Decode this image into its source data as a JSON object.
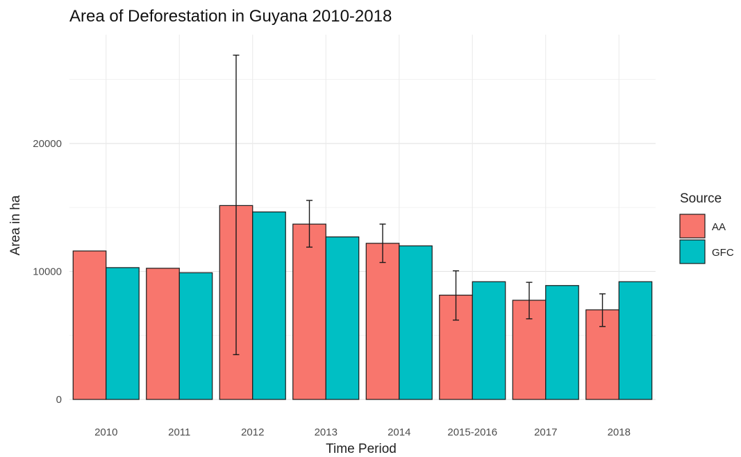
{
  "chart_data": {
    "type": "bar",
    "title": "Area of Deforestation in Guyana 2010-2018",
    "xlabel": "Time Period",
    "ylabel": "Area in ha",
    "categories": [
      "2010",
      "2011",
      "2012",
      "2013",
      "2014",
      "2015-2016",
      "2017",
      "2018"
    ],
    "ylim": [
      0,
      28500
    ],
    "y_ticks": [
      0,
      10000,
      20000
    ],
    "grid": true,
    "legend": {
      "title": "Source",
      "position": "right"
    },
    "series": [
      {
        "name": "AA",
        "color": "#F8766D",
        "values": [
          11600,
          10250,
          15150,
          13700,
          12200,
          8150,
          7750,
          7000
        ],
        "error_low": [
          null,
          null,
          3500,
          11900,
          10700,
          6200,
          6300,
          5700
        ],
        "error_high": [
          null,
          null,
          26900,
          15550,
          13700,
          10050,
          9150,
          8250
        ]
      },
      {
        "name": "GFC",
        "color": "#00BFC4",
        "values": [
          10300,
          9900,
          14650,
          12700,
          12000,
          9200,
          8900,
          9200
        ]
      }
    ]
  }
}
